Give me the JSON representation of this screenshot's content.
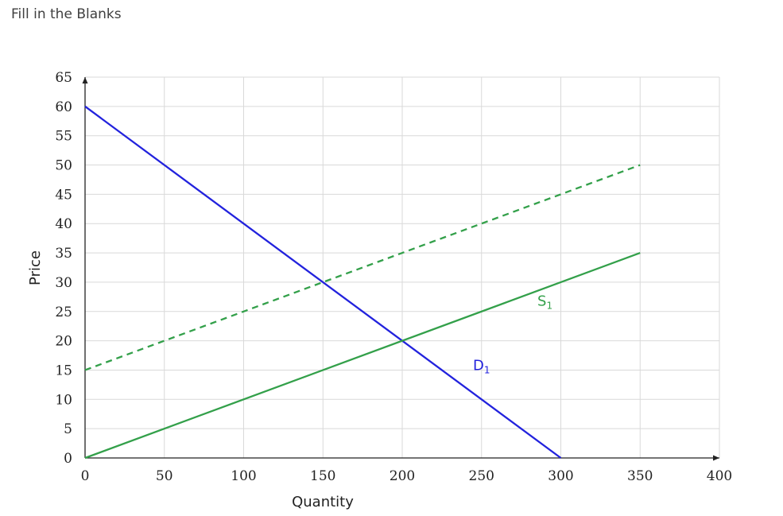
{
  "page": {
    "title": "Fill in the Blanks"
  },
  "chart_data": {
    "type": "line",
    "title": "",
    "xlabel": "Quantity",
    "ylabel": "Price",
    "xlim": [
      0,
      400
    ],
    "ylim": [
      0,
      65
    ],
    "x_ticks": [
      0,
      50,
      100,
      150,
      200,
      250,
      300,
      350,
      400
    ],
    "y_ticks": [
      0,
      5,
      10,
      15,
      20,
      25,
      30,
      35,
      40,
      45,
      50,
      55,
      60,
      65
    ],
    "grid": true,
    "series": [
      {
        "name": "D1",
        "color": "#2222dd",
        "style": "solid",
        "x": [
          0,
          300
        ],
        "y": [
          60,
          0
        ],
        "label_at": [
          250,
          15
        ]
      },
      {
        "name": "S1",
        "color": "#33a04a",
        "style": "solid",
        "x": [
          0,
          350
        ],
        "y": [
          0,
          35
        ],
        "label_at": [
          290,
          26
        ]
      },
      {
        "color": "#33a04a",
        "style": "dashed",
        "x": [
          0,
          350
        ],
        "y": [
          15,
          50
        ]
      }
    ],
    "series_labels": {
      "D1": {
        "main": "D",
        "sub": "1"
      },
      "S1": {
        "main": "S",
        "sub": "1"
      }
    }
  }
}
